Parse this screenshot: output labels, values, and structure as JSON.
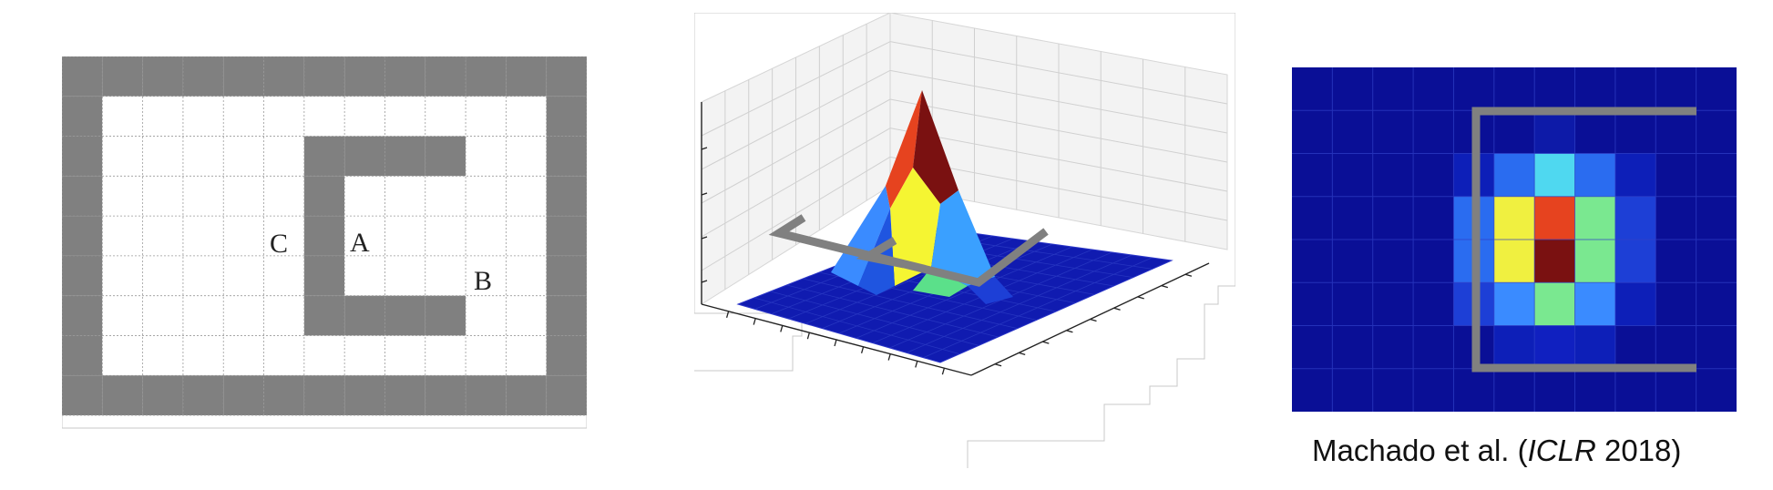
{
  "figure": {
    "panels": [
      {
        "id": "gridworld",
        "rows": 9,
        "cols": 13,
        "labels": [
          "C",
          "A",
          "B"
        ]
      },
      {
        "id": "surface-plot",
        "type": "3d-surface",
        "peak_colors": [
          "#e6431f",
          "#7a1111",
          "#f5f532",
          "#3aa0ff"
        ],
        "base_color": "#101bb0",
        "wall_color": "#808080"
      },
      {
        "id": "heatmap",
        "rows": 8,
        "cols": 11,
        "background_color": "#0a0f96",
        "wall_color": "#808080"
      }
    ]
  },
  "citation": {
    "authors": "Machado et al. (",
    "venue": "ICLR",
    "year": " 2018)"
  }
}
